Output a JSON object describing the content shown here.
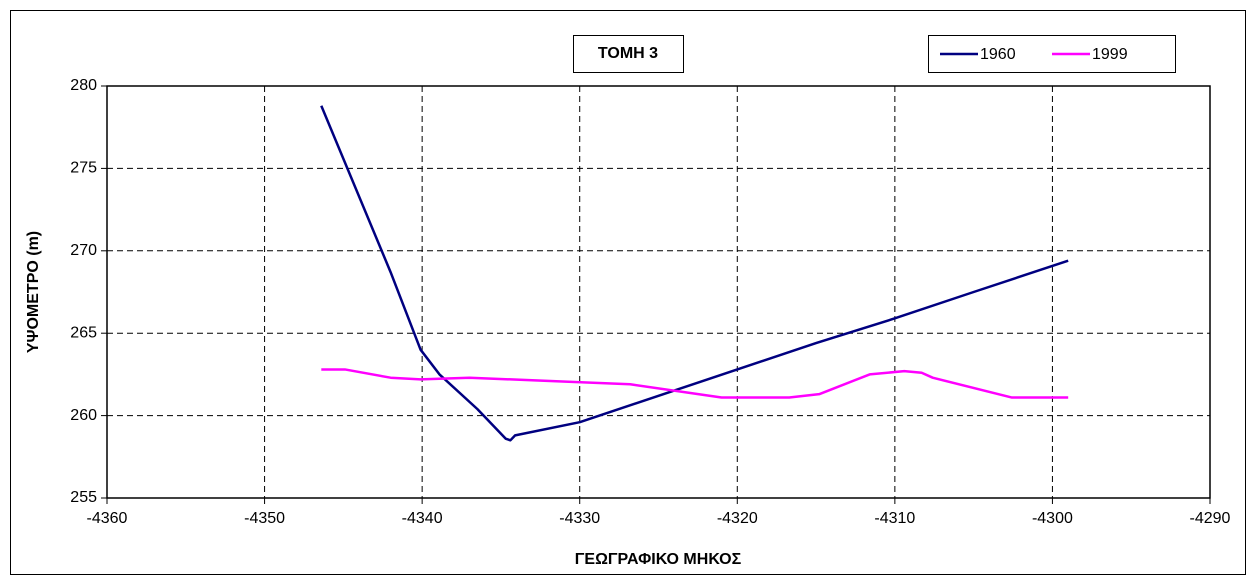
{
  "chart_data": {
    "type": "line",
    "title": "ΤΟΜΗ 3",
    "x_label": "ΓΕΩΓΡΑΦΙΚΟ ΜΗΚΟΣ",
    "y_label": "ΥΨΟΜΕΤΡΟ (m)",
    "xlim": [
      -4360,
      -4290
    ],
    "xticks": [
      -4360,
      -4350,
      -4340,
      -4330,
      -4320,
      -4310,
      -4300,
      -4290
    ],
    "ylim": [
      255,
      280
    ],
    "yticks": [
      255,
      260,
      265,
      270,
      275,
      280
    ],
    "grid": true,
    "legend": "top-right",
    "series": [
      {
        "name": "1960",
        "color": "#000080",
        "x": [
          -4346.4,
          -4342.0,
          -4340.1,
          -4338.9,
          -4336.5,
          -4334.7,
          -4334.4,
          -4334.1,
          -4330,
          -4325,
          -4320,
          -4315,
          -4310,
          -4305,
          -4299
        ],
        "values": [
          278.8,
          268.7,
          264.0,
          262.5,
          260.4,
          258.6,
          258.5,
          258.8,
          259.6,
          261.2,
          262.8,
          264.4,
          265.9,
          267.5,
          269.4
        ]
      },
      {
        "name": "1999",
        "color": "#ff00ff",
        "x": [
          -4346.4,
          -4344.9,
          -4342.0,
          -4340.1,
          -4337.0,
          -4326.8,
          -4321.0,
          -4316.7,
          -4314.8,
          -4311.6,
          -4309.4,
          -4308.3,
          -4307.6,
          -4302.6,
          -4299
        ],
        "values": [
          262.8,
          262.8,
          262.3,
          262.2,
          262.3,
          261.9,
          261.1,
          261.1,
          261.3,
          262.5,
          262.7,
          262.6,
          262.3,
          261.1,
          261.1
        ]
      }
    ]
  }
}
